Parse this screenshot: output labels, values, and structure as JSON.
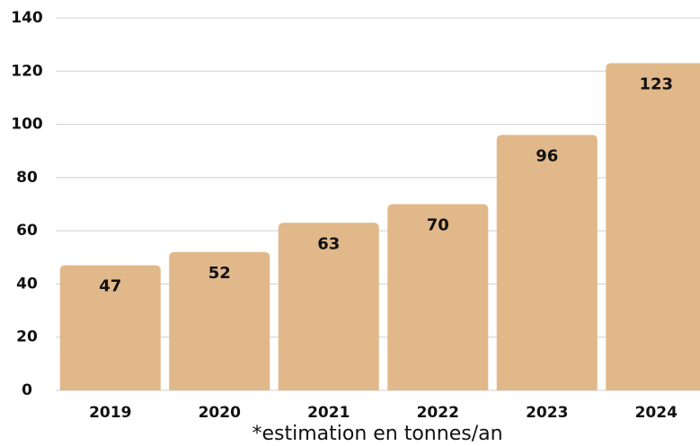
{
  "chart_data": {
    "type": "bar",
    "categories": [
      "2019",
      "2020",
      "2021",
      "2022",
      "2023",
      "2024"
    ],
    "values": [
      47,
      52,
      63,
      70,
      96,
      123
    ],
    "color": "#e0b88a",
    "ylim": [
      0,
      140
    ],
    "yticks": [
      0,
      20,
      40,
      60,
      80,
      100,
      120,
      140
    ],
    "grid": true,
    "footnote": "*estimation en tonnes/an"
  }
}
